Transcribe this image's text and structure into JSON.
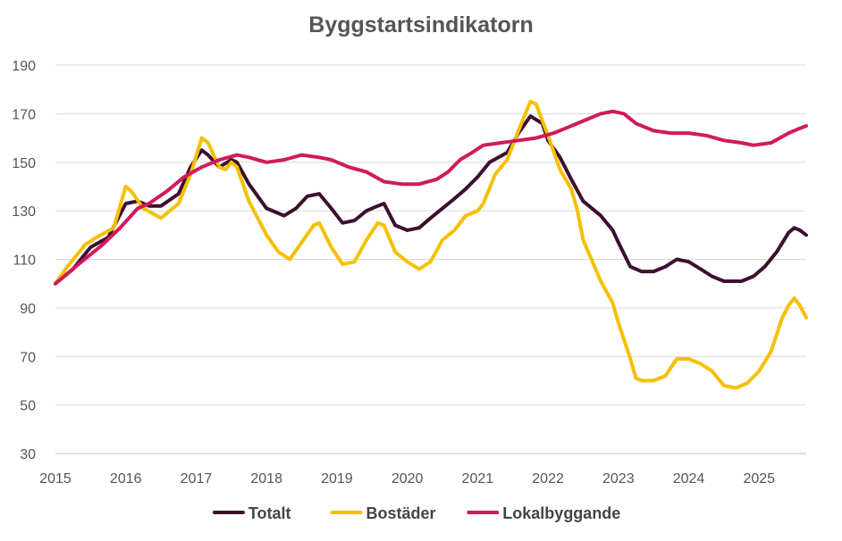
{
  "chart_data": {
    "type": "line",
    "title": "Byggstartsindikatorn",
    "xlabel": "",
    "ylabel": "",
    "ylim": [
      30,
      190
    ],
    "yticks": [
      30,
      50,
      70,
      90,
      110,
      130,
      150,
      170,
      190
    ],
    "xlim": [
      2015,
      2025.67
    ],
    "xticks": [
      2015,
      2016,
      2017,
      2018,
      2019,
      2020,
      2021,
      2022,
      2023,
      2024,
      2025
    ],
    "grid": "horizontal",
    "legend_position": "bottom",
    "series": [
      {
        "name": "Totalt",
        "color": "#3d1030",
        "points": [
          [
            2015.0,
            100
          ],
          [
            2015.25,
            106
          ],
          [
            2015.5,
            115
          ],
          [
            2015.75,
            119
          ],
          [
            2016.0,
            133
          ],
          [
            2016.17,
            134
          ],
          [
            2016.33,
            132
          ],
          [
            2016.5,
            132
          ],
          [
            2016.75,
            137
          ],
          [
            2016.92,
            148
          ],
          [
            2017.08,
            155
          ],
          [
            2017.17,
            153
          ],
          [
            2017.33,
            148
          ],
          [
            2017.5,
            151
          ],
          [
            2017.58,
            150
          ],
          [
            2017.75,
            141
          ],
          [
            2018.0,
            131
          ],
          [
            2018.25,
            128
          ],
          [
            2018.42,
            131
          ],
          [
            2018.58,
            136
          ],
          [
            2018.75,
            137
          ],
          [
            2018.92,
            131
          ],
          [
            2019.08,
            125
          ],
          [
            2019.25,
            126
          ],
          [
            2019.42,
            130
          ],
          [
            2019.58,
            132
          ],
          [
            2019.67,
            133
          ],
          [
            2019.83,
            124
          ],
          [
            2020.0,
            122
          ],
          [
            2020.17,
            123
          ],
          [
            2020.33,
            127
          ],
          [
            2020.5,
            131
          ],
          [
            2020.67,
            135
          ],
          [
            2020.83,
            139
          ],
          [
            2021.0,
            144
          ],
          [
            2021.17,
            150
          ],
          [
            2021.42,
            154
          ],
          [
            2021.58,
            162
          ],
          [
            2021.75,
            169
          ],
          [
            2021.92,
            166
          ],
          [
            2022.0,
            159
          ],
          [
            2022.17,
            152
          ],
          [
            2022.33,
            143
          ],
          [
            2022.5,
            134
          ],
          [
            2022.75,
            128
          ],
          [
            2022.92,
            122
          ],
          [
            2023.0,
            117
          ],
          [
            2023.17,
            107
          ],
          [
            2023.33,
            105
          ],
          [
            2023.5,
            105
          ],
          [
            2023.67,
            107
          ],
          [
            2023.83,
            110
          ],
          [
            2024.0,
            109
          ],
          [
            2024.17,
            106
          ],
          [
            2024.33,
            103
          ],
          [
            2024.5,
            101
          ],
          [
            2024.75,
            101
          ],
          [
            2024.92,
            103
          ],
          [
            2025.08,
            107
          ],
          [
            2025.25,
            113
          ],
          [
            2025.42,
            121
          ],
          [
            2025.5,
            123
          ],
          [
            2025.58,
            122
          ],
          [
            2025.67,
            120
          ]
        ]
      },
      {
        "name": "Bostäder",
        "color": "#f5c000",
        "points": [
          [
            2015.0,
            100
          ],
          [
            2015.17,
            107
          ],
          [
            2015.42,
            116
          ],
          [
            2015.58,
            119
          ],
          [
            2015.83,
            123
          ],
          [
            2016.0,
            140
          ],
          [
            2016.08,
            138
          ],
          [
            2016.25,
            131
          ],
          [
            2016.5,
            127
          ],
          [
            2016.75,
            133
          ],
          [
            2016.92,
            145
          ],
          [
            2017.08,
            160
          ],
          [
            2017.17,
            158
          ],
          [
            2017.25,
            153
          ],
          [
            2017.33,
            148
          ],
          [
            2017.42,
            147
          ],
          [
            2017.5,
            150
          ],
          [
            2017.58,
            148
          ],
          [
            2017.75,
            134
          ],
          [
            2018.0,
            120
          ],
          [
            2018.17,
            113
          ],
          [
            2018.33,
            110
          ],
          [
            2018.5,
            117
          ],
          [
            2018.67,
            124
          ],
          [
            2018.75,
            125
          ],
          [
            2018.92,
            115
          ],
          [
            2019.08,
            108
          ],
          [
            2019.25,
            109
          ],
          [
            2019.42,
            118
          ],
          [
            2019.58,
            125
          ],
          [
            2019.67,
            124
          ],
          [
            2019.83,
            113
          ],
          [
            2020.0,
            109
          ],
          [
            2020.17,
            106
          ],
          [
            2020.33,
            109
          ],
          [
            2020.5,
            118
          ],
          [
            2020.67,
            122
          ],
          [
            2020.83,
            128
          ],
          [
            2021.0,
            130
          ],
          [
            2021.08,
            133
          ],
          [
            2021.25,
            145
          ],
          [
            2021.42,
            151
          ],
          [
            2021.58,
            163
          ],
          [
            2021.75,
            175
          ],
          [
            2021.83,
            174
          ],
          [
            2022.0,
            161
          ],
          [
            2022.17,
            147
          ],
          [
            2022.33,
            139
          ],
          [
            2022.42,
            130
          ],
          [
            2022.5,
            118
          ],
          [
            2022.75,
            101
          ],
          [
            2022.92,
            92
          ],
          [
            2023.0,
            84
          ],
          [
            2023.17,
            69
          ],
          [
            2023.25,
            61
          ],
          [
            2023.33,
            60
          ],
          [
            2023.5,
            60
          ],
          [
            2023.67,
            62
          ],
          [
            2023.83,
            69
          ],
          [
            2024.0,
            69
          ],
          [
            2024.17,
            67
          ],
          [
            2024.33,
            64
          ],
          [
            2024.5,
            58
          ],
          [
            2024.67,
            57
          ],
          [
            2024.83,
            59
          ],
          [
            2025.0,
            64
          ],
          [
            2025.17,
            72
          ],
          [
            2025.33,
            86
          ],
          [
            2025.42,
            91
          ],
          [
            2025.5,
            94
          ],
          [
            2025.58,
            91
          ],
          [
            2025.67,
            86
          ]
        ]
      },
      {
        "name": "Lokalbyggande",
        "color": "#d11a5c",
        "points": [
          [
            2015.0,
            100
          ],
          [
            2015.33,
            108
          ],
          [
            2015.67,
            116
          ],
          [
            2015.92,
            123
          ],
          [
            2016.17,
            131
          ],
          [
            2016.33,
            133
          ],
          [
            2016.58,
            138
          ],
          [
            2016.83,
            144
          ],
          [
            2017.08,
            148
          ],
          [
            2017.33,
            151
          ],
          [
            2017.58,
            153
          ],
          [
            2017.75,
            152
          ],
          [
            2018.0,
            150
          ],
          [
            2018.25,
            151
          ],
          [
            2018.5,
            153
          ],
          [
            2018.75,
            152
          ],
          [
            2018.92,
            151
          ],
          [
            2019.17,
            148
          ],
          [
            2019.42,
            146
          ],
          [
            2019.67,
            142
          ],
          [
            2019.92,
            141
          ],
          [
            2020.17,
            141
          ],
          [
            2020.42,
            143
          ],
          [
            2020.58,
            146
          ],
          [
            2020.75,
            151
          ],
          [
            2020.92,
            154
          ],
          [
            2021.08,
            157
          ],
          [
            2021.33,
            158
          ],
          [
            2021.58,
            159
          ],
          [
            2021.83,
            160
          ],
          [
            2022.08,
            162
          ],
          [
            2022.25,
            164
          ],
          [
            2022.5,
            167
          ],
          [
            2022.75,
            170
          ],
          [
            2022.92,
            171
          ],
          [
            2023.08,
            170
          ],
          [
            2023.25,
            166
          ],
          [
            2023.5,
            163
          ],
          [
            2023.75,
            162
          ],
          [
            2024.0,
            162
          ],
          [
            2024.25,
            161
          ],
          [
            2024.5,
            159
          ],
          [
            2024.75,
            158
          ],
          [
            2024.92,
            157
          ],
          [
            2025.17,
            158
          ],
          [
            2025.42,
            162
          ],
          [
            2025.58,
            164
          ],
          [
            2025.67,
            165
          ]
        ]
      }
    ]
  }
}
